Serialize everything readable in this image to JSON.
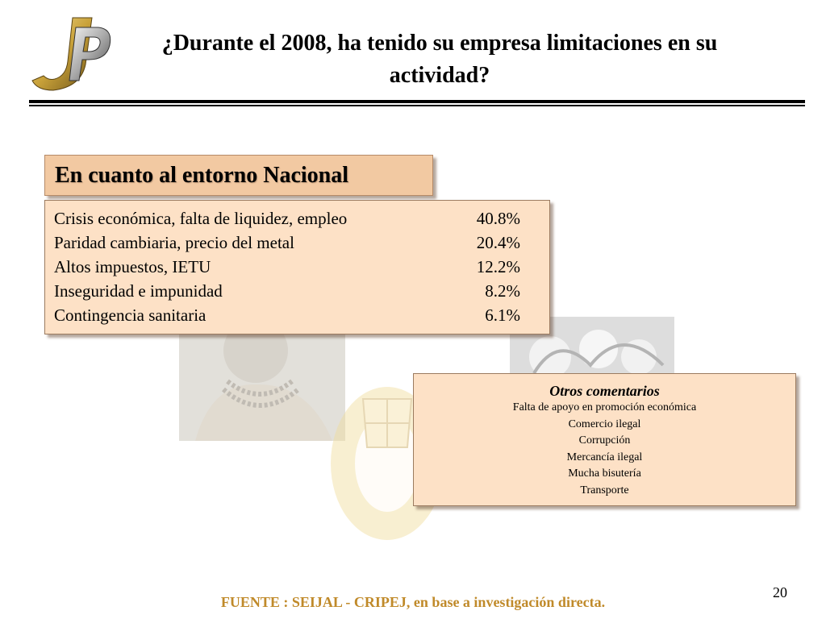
{
  "slide": {
    "title": "¿Durante el 2008, ha tenido su empresa limitaciones en su actividad?",
    "page_number": "20",
    "footer": "FUENTE :  SEIJAL - CRIPEJ,  en base a investigación directa.",
    "logo_text": "JP"
  },
  "section": {
    "header": "En cuanto al entorno  Nacional",
    "rows": [
      {
        "label": "Crisis económica, falta de liquidez, empleo",
        "value": "40.8%"
      },
      {
        "label": "Paridad cambiaria, precio del metal",
        "value": "20.4%"
      },
      {
        "label": "Altos impuestos, IETU",
        "value": "12.2%"
      },
      {
        "label": "Inseguridad e impunidad",
        "value": "8.2%"
      },
      {
        "label": "Contingencia sanitaria",
        "value": "6.1%"
      }
    ]
  },
  "comments": {
    "title": "Otros comentarios",
    "items": [
      "Falta de apoyo en promoción económica",
      "Comercio ilegal",
      "Corrupción",
      "Mercancía ilegal",
      "Mucha bisutería",
      "Transporte"
    ]
  },
  "colors": {
    "box_fill": "#fde1c6",
    "header_fill": "#f2c9a2",
    "footer_text": "#c08a2a",
    "logo_gold": "#c9a23a"
  }
}
